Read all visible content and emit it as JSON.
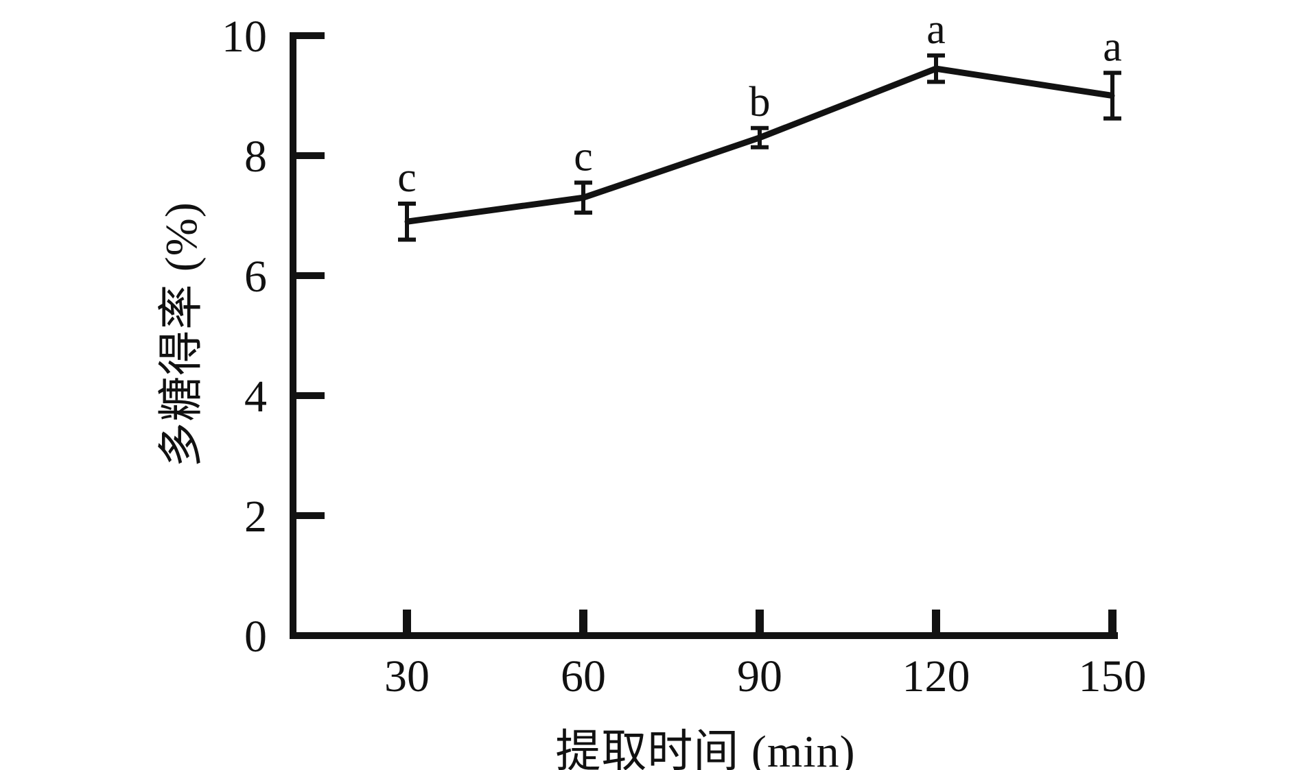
{
  "chart_data": {
    "type": "line",
    "title": "",
    "xlabel": "提取时间 (min)",
    "ylabel": "多糖得率 (%)",
    "x": [
      30,
      60,
      90,
      120,
      150
    ],
    "xticks": [
      "30",
      "60",
      "90",
      "120",
      "150"
    ],
    "yticks": [
      "0",
      "2",
      "4",
      "6",
      "8",
      "10"
    ],
    "ytick_values": [
      0,
      2,
      4,
      6,
      8,
      10
    ],
    "xlim": [
      30,
      150
    ],
    "ylim": [
      0,
      10
    ],
    "grid": false,
    "legend": null,
    "series": [
      {
        "name": "多糖得率",
        "values": [
          6.9,
          7.3,
          8.3,
          9.45,
          9.0
        ],
        "errors": [
          0.3,
          0.25,
          0.16,
          0.22,
          0.38
        ],
        "point_labels": [
          "c",
          "c",
          "b",
          "a",
          "a"
        ]
      }
    ],
    "line_color": "#121212",
    "axis_color": "#121212",
    "text_color": "#111111",
    "background_color": "#ffffff"
  }
}
